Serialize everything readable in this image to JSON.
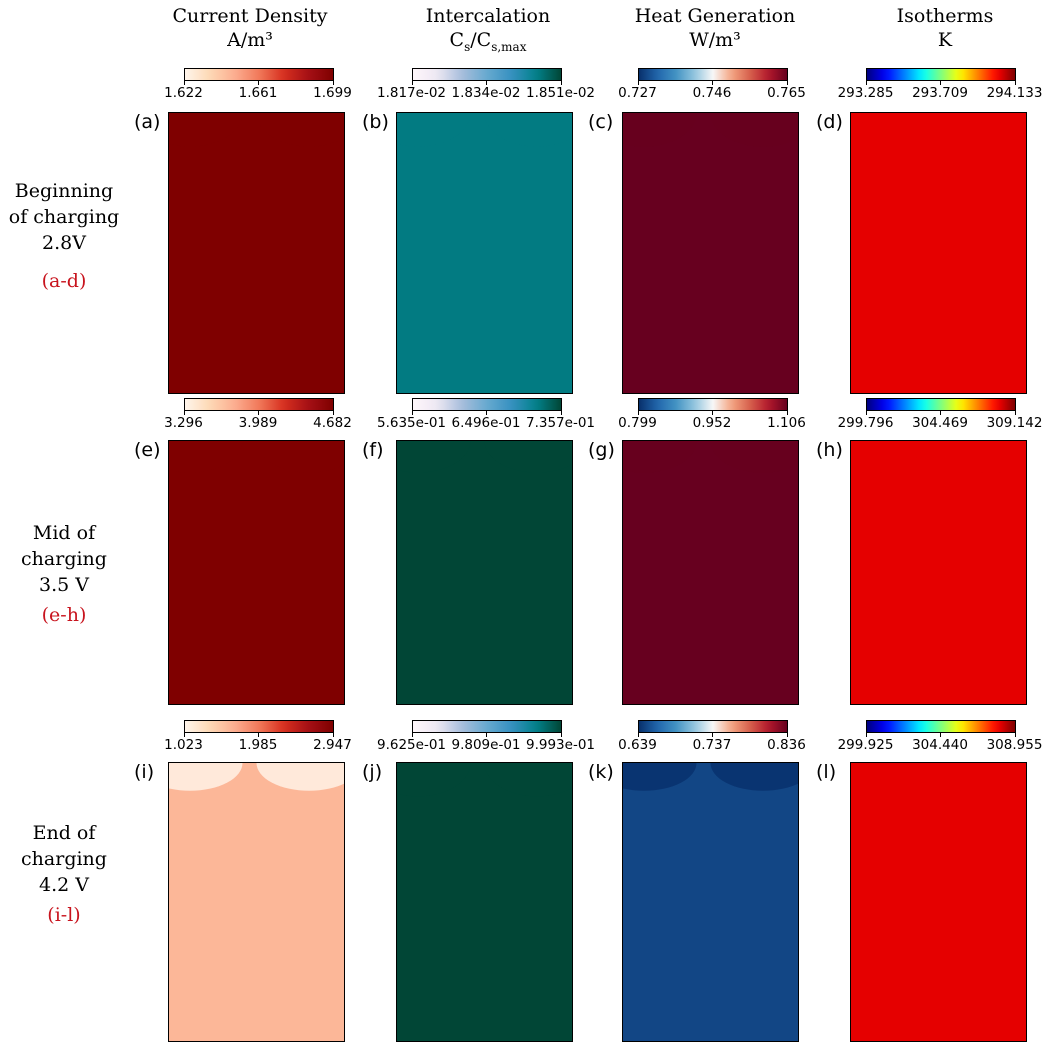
{
  "columns": [
    {
      "title": "Current Density",
      "unit": "A/m³"
    },
    {
      "title": "Intercalation",
      "unit": "Cs/Cs,max"
    },
    {
      "title": "Heat Generation",
      "unit": "W/m³"
    },
    {
      "title": "Isotherms",
      "unit": "K"
    }
  ],
  "rows": [
    {
      "line1": "Beginning",
      "line2": "of charging",
      "line3": "2.8V",
      "range": "(a-d)"
    },
    {
      "line1": "Mid of",
      "line2": "charging",
      "line3": "3.5 V",
      "range": "(e-h)"
    },
    {
      "line1": "End of",
      "line2": "charging",
      "line3": "4.2 V",
      "range": "(i-l)"
    }
  ],
  "panel_labels": [
    "(a)",
    "(b)",
    "(c)",
    "(d)",
    "(e)",
    "(f)",
    "(g)",
    "(h)",
    "(i)",
    "(j)",
    "(k)",
    "(l)"
  ],
  "colormaps": {
    "current_density": [
      "#fff5eb",
      "#fdd9b5",
      "#fcae91",
      "#f1795a",
      "#d7301f",
      "#a50f15",
      "#7f0000"
    ],
    "intercalation": [
      "#fff7fb",
      "#ece7f2",
      "#a6bddb",
      "#67a9cf",
      "#3690c0",
      "#02818a",
      "#014636"
    ],
    "heat_generation": [
      "#08306b",
      "#2166ac",
      "#4393c3",
      "#92c5de",
      "#f7f7f7",
      "#f4a582",
      "#d6604d",
      "#b2182b",
      "#67001f"
    ],
    "isotherms": [
      "#00007f",
      "#0000ff",
      "#007fff",
      "#00ffff",
      "#7fff7f",
      "#ffff00",
      "#ff7f00",
      "#ff0000",
      "#7f0000"
    ]
  },
  "chart_data": [
    {
      "type": "heatmap",
      "panel": "(a)",
      "title": "Current Density",
      "unit": "A/m³",
      "colorbar_min": 1.622,
      "colorbar_max": 1.699,
      "ticks": [
        "1.622",
        "1.661",
        "1.699"
      ],
      "colormap": "current_density",
      "hot_at": "top",
      "intensity_profile": [
        1.0,
        0.45,
        0.32,
        0.25,
        0.2,
        0.16,
        0.12,
        0.09,
        0.06,
        0.04,
        0.02,
        0.0
      ]
    },
    {
      "type": "heatmap",
      "panel": "(b)",
      "title": "Intercalation",
      "unit": "Cs/Cs,max",
      "colorbar_min": 0.01817,
      "colorbar_max": 0.01851,
      "ticks": [
        "1.817e-02",
        "1.834e-02",
        "1.851e-02"
      ],
      "colormap": "intercalation",
      "hot_at": "top",
      "intensity_profile": [
        0.85,
        0.6,
        0.5,
        0.43,
        0.36,
        0.3,
        0.24,
        0.18,
        0.12,
        0.08,
        0.04,
        0.01
      ]
    },
    {
      "type": "heatmap",
      "panel": "(c)",
      "title": "Heat Generation",
      "unit": "W/m³",
      "colorbar_min": 0.727,
      "colorbar_max": 0.765,
      "ticks": [
        "0.727",
        "0.746",
        "0.765"
      ],
      "colormap": "heat_generation",
      "hot_at": "top",
      "intensity_profile": [
        1.0,
        0.46,
        0.38,
        0.33,
        0.28,
        0.24,
        0.2,
        0.16,
        0.12,
        0.08,
        0.04,
        0.0
      ]
    },
    {
      "type": "heatmap",
      "panel": "(d)",
      "title": "Isotherms",
      "unit": "K",
      "colorbar_min": 293.285,
      "colorbar_max": 294.133,
      "ticks": [
        "293.285",
        "293.709",
        "294.133"
      ],
      "colormap": "isotherms",
      "hot_at": "top",
      "intensity_profile": [
        0.9,
        0.06,
        0.04,
        0.03,
        0.02,
        0.02,
        0.01,
        0.01,
        0.0,
        0.0,
        0.0,
        0.0
      ]
    },
    {
      "type": "heatmap",
      "panel": "(e)",
      "title": "Current Density",
      "unit": "A/m³",
      "colorbar_min": 3.296,
      "colorbar_max": 4.682,
      "ticks": [
        "3.296",
        "3.989",
        "4.682"
      ],
      "colormap": "current_density",
      "hot_at": "top",
      "intensity_profile": [
        1.0,
        0.55,
        0.4,
        0.3,
        0.22,
        0.16,
        0.1,
        0.06,
        0.03,
        0.01,
        0.0,
        0.0
      ]
    },
    {
      "type": "heatmap",
      "panel": "(f)",
      "title": "Intercalation",
      "unit": "Cs/Cs,max",
      "colorbar_min": 0.5635,
      "colorbar_max": 0.7357,
      "ticks": [
        "5.635e-01",
        "6.496e-01",
        "7.357e-01"
      ],
      "colormap": "intercalation",
      "hot_at": "top",
      "intensity_profile": [
        1.0,
        0.5,
        0.32,
        0.22,
        0.15,
        0.1,
        0.07,
        0.04,
        0.02,
        0.01,
        0.0,
        0.0
      ]
    },
    {
      "type": "heatmap",
      "panel": "(g)",
      "title": "Heat Generation",
      "unit": "W/m³",
      "colorbar_min": 0.799,
      "colorbar_max": 1.106,
      "ticks": [
        "0.799",
        "0.952",
        "1.106"
      ],
      "colormap": "heat_generation",
      "hot_at": "top",
      "intensity_profile": [
        1.0,
        0.55,
        0.42,
        0.34,
        0.27,
        0.21,
        0.16,
        0.11,
        0.06,
        0.03,
        0.01,
        0.0
      ]
    },
    {
      "type": "heatmap",
      "panel": "(h)",
      "title": "Isotherms",
      "unit": "K",
      "colorbar_min": 299.796,
      "colorbar_max": 309.142,
      "ticks": [
        "299.796",
        "304.469",
        "309.142"
      ],
      "colormap": "isotherms",
      "hot_at": "top",
      "intensity_profile": [
        0.9,
        0.6,
        0.42,
        0.3,
        0.22,
        0.16,
        0.11,
        0.07,
        0.04,
        0.02,
        0.01,
        0.0
      ]
    },
    {
      "type": "heatmap",
      "panel": "(i)",
      "title": "Current Density",
      "unit": "A/m³",
      "colorbar_min": 1.023,
      "colorbar_max": 2.947,
      "ticks": [
        "1.023",
        "1.985",
        "2.947"
      ],
      "colormap": "current_density",
      "hot_at": "bottom",
      "intensity_profile": [
        0.3,
        0.55,
        0.65,
        0.72,
        0.78,
        0.83,
        0.87,
        0.9,
        0.93,
        0.96,
        0.98,
        1.0
      ]
    },
    {
      "type": "heatmap",
      "panel": "(j)",
      "title": "Intercalation",
      "unit": "Cs/Cs,max",
      "colorbar_min": 0.9625,
      "colorbar_max": 0.9993,
      "ticks": [
        "9.625e-01",
        "9.809e-01",
        "9.993e-01"
      ],
      "colormap": "intercalation",
      "hot_at": "top",
      "intensity_profile": [
        1.0,
        0.82,
        0.66,
        0.52,
        0.4,
        0.3,
        0.22,
        0.15,
        0.1,
        0.05,
        0.02,
        0.0
      ]
    },
    {
      "type": "heatmap",
      "panel": "(k)",
      "title": "Heat Generation",
      "unit": "W/m³",
      "colorbar_min": 0.639,
      "colorbar_max": 0.836,
      "ticks": [
        "0.639",
        "0.737",
        "0.836"
      ],
      "colormap": "heat_generation",
      "hot_at": "bottom",
      "intensity_profile": [
        0.05,
        0.3,
        0.45,
        0.55,
        0.63,
        0.7,
        0.76,
        0.82,
        0.87,
        0.92,
        0.96,
        1.0
      ]
    },
    {
      "type": "heatmap",
      "panel": "(l)",
      "title": "Isotherms",
      "unit": "K",
      "colorbar_min": 299.925,
      "colorbar_max": 308.955,
      "ticks": [
        "299.925",
        "304.440",
        "308.955"
      ],
      "colormap": "isotherms",
      "hot_at": "top",
      "intensity_profile": [
        0.9,
        0.58,
        0.42,
        0.3,
        0.22,
        0.16,
        0.11,
        0.07,
        0.04,
        0.02,
        0.01,
        0.0
      ]
    }
  ]
}
